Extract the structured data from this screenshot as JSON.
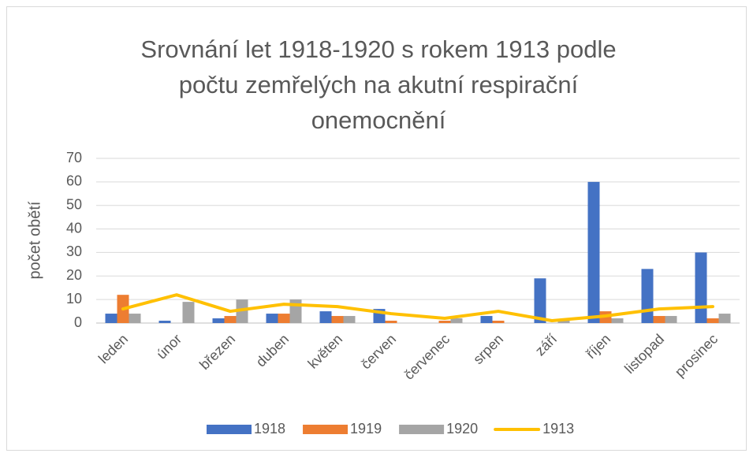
{
  "chart_data": {
    "type": "bar",
    "title": "Srovnání let 1918-1920 s rokem 1913 podle počtu zemřelých na akutní respirační onemocnění",
    "y_label": "počet obětí",
    "categories": [
      "leden",
      "únor",
      "březen",
      "duben",
      "květen",
      "červen",
      "červenec",
      "srpen",
      "září",
      "říjen",
      "listopad",
      "prosinec"
    ],
    "series": [
      {
        "name": "1918",
        "type": "bar",
        "color": "#4472c4",
        "values": [
          4,
          1,
          2,
          4,
          5,
          6,
          0,
          3,
          19,
          60,
          23,
          30
        ]
      },
      {
        "name": "1919",
        "type": "bar",
        "color": "#ed7d31",
        "values": [
          12,
          0,
          3,
          4,
          3,
          1,
          1,
          1,
          0,
          5,
          3,
          2
        ]
      },
      {
        "name": "1920",
        "type": "bar",
        "color": "#a5a5a5",
        "values": [
          4,
          9,
          10,
          10,
          3,
          0,
          2,
          0,
          1,
          2,
          3,
          4
        ]
      },
      {
        "name": "1913",
        "type": "line",
        "color": "#ffc000",
        "values": [
          6,
          12,
          5,
          8,
          7,
          4,
          2,
          5,
          1,
          3,
          6,
          7
        ]
      }
    ],
    "ylim": [
      0,
      70
    ],
    "yticks": [
      0,
      10,
      20,
      30,
      40,
      50,
      60,
      70
    ],
    "grid": true,
    "legend": "bottom"
  }
}
